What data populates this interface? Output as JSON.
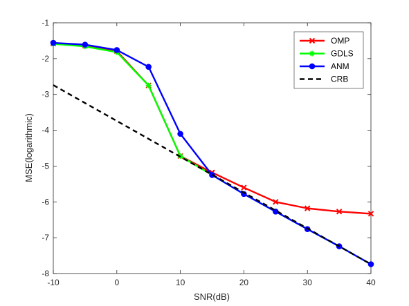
{
  "chart_data": {
    "type": "line",
    "xlabel": "SNR(dB)",
    "ylabel": "MSE(logarithmic)",
    "xlim": [
      -10,
      40
    ],
    "ylim": [
      -8,
      -1
    ],
    "xticks": [
      -10,
      0,
      10,
      20,
      30,
      40
    ],
    "yticks": [
      -1,
      -2,
      -3,
      -4,
      -5,
      -6,
      -7,
      -8
    ],
    "grid": false,
    "legend_position": "top-right",
    "x": [
      -10,
      -5,
      0,
      5,
      10,
      15,
      20,
      25,
      30,
      35,
      40
    ],
    "series": [
      {
        "name": "OMP",
        "color": "#ff0000",
        "marker": "x",
        "line": "solid",
        "values": [
          -1.58,
          -1.64,
          -1.79,
          -2.75,
          -4.72,
          -5.18,
          -5.6,
          -6.0,
          -6.18,
          -6.27,
          -6.33
        ]
      },
      {
        "name": "GDLS",
        "color": "#00ff00",
        "marker": "star",
        "line": "solid",
        "values": [
          -1.59,
          -1.66,
          -1.82,
          -2.75,
          -4.72,
          -5.25,
          -5.78,
          -6.27,
          -6.76,
          -7.24,
          -7.74
        ]
      },
      {
        "name": "ANM",
        "color": "#0000ff",
        "marker": "circle",
        "line": "solid",
        "values": [
          -1.56,
          -1.61,
          -1.76,
          -2.23,
          -4.1,
          -5.25,
          -5.78,
          -6.27,
          -6.76,
          -7.24,
          -7.74
        ]
      },
      {
        "name": "CRB",
        "color": "#000000",
        "marker": "none",
        "line": "dashed",
        "values": [
          -2.74,
          -3.24,
          -3.74,
          -4.24,
          -4.74,
          -5.24,
          -5.74,
          -6.24,
          -6.74,
          -7.24,
          -7.74
        ]
      }
    ]
  }
}
